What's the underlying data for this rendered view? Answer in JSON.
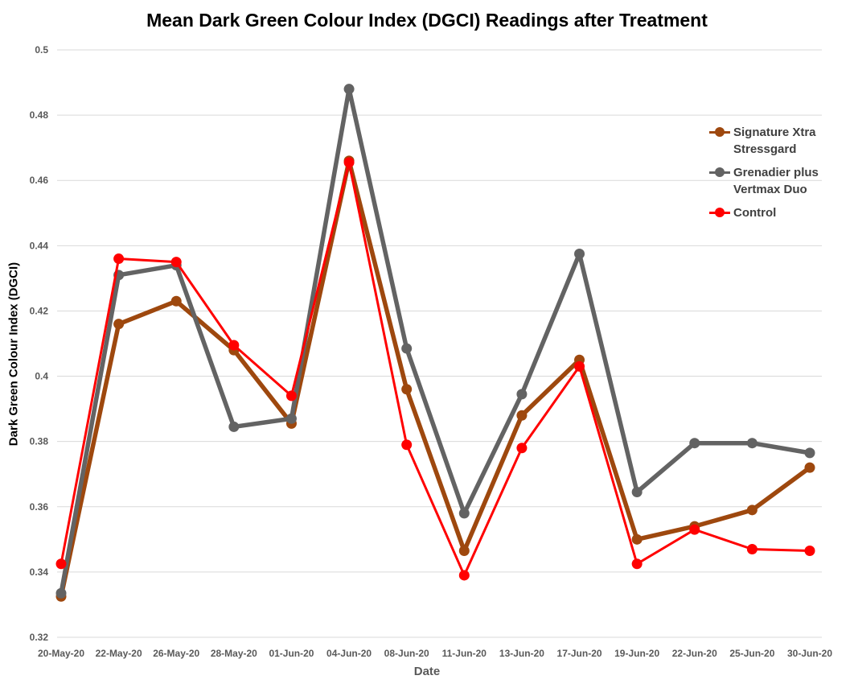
{
  "chart_data": {
    "type": "line",
    "title": "Mean Dark Green Colour Index (DGCI) Readings after Treatment",
    "xlabel": "Date",
    "ylabel": "Dark Green Colour Index (DGCI)",
    "ylim": [
      0.32,
      0.5
    ],
    "yticks": [
      "0.32",
      "0.34",
      "0.36",
      "0.38",
      "0.4",
      "0.42",
      "0.44",
      "0.46",
      "0.48",
      "0.5"
    ],
    "grid": "horizontal",
    "legend_position": "right",
    "categories": [
      "20-May-20",
      "22-May-20",
      "26-May-20",
      "28-May-20",
      "01-Jun-20",
      "04-Jun-20",
      "08-Jun-20",
      "11-Jun-20",
      "13-Jun-20",
      "17-Jun-20",
      "19-Jun-20",
      "22-Jun-20",
      "25-Jun-20",
      "30-Jun-20"
    ],
    "series": [
      {
        "name": "Signature Xtra Stressgard",
        "color": "#9e480e",
        "line_weight": "thick",
        "values": [
          0.3325,
          0.416,
          0.423,
          0.408,
          0.3855,
          0.466,
          0.396,
          0.3465,
          0.388,
          0.405,
          0.35,
          0.354,
          0.359,
          0.372
        ]
      },
      {
        "name": "Grenadier plus Vertmax Duo",
        "color": "#636363",
        "line_weight": "thick",
        "values": [
          0.3335,
          0.431,
          0.434,
          0.3845,
          0.387,
          0.488,
          0.4085,
          0.358,
          0.3945,
          0.4375,
          0.3645,
          0.3795,
          0.3795,
          0.3765
        ]
      },
      {
        "name": "Control",
        "color": "#ff0000",
        "line_weight": "thin",
        "values": [
          0.3425,
          0.436,
          0.435,
          0.4095,
          0.394,
          0.4655,
          0.379,
          0.339,
          0.378,
          0.403,
          0.3425,
          0.353,
          0.347,
          0.3465
        ]
      }
    ]
  }
}
